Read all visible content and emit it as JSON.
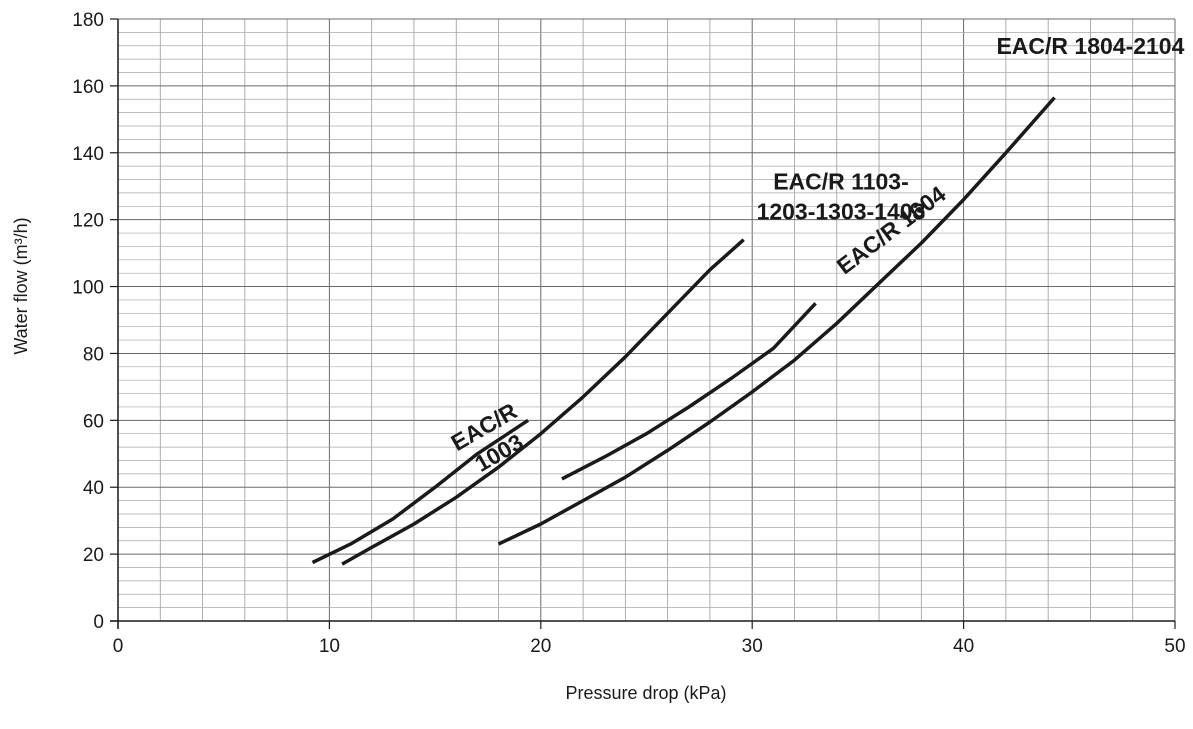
{
  "chart_data": {
    "type": "line",
    "xlabel": "Pressure drop (kPa)",
    "ylabel": "Water flow (m³/h)",
    "xlim": [
      0,
      50
    ],
    "ylim": [
      0,
      180
    ],
    "x_ticks": [
      "0",
      "10",
      "20",
      "30",
      "40",
      "50"
    ],
    "y_ticks": [
      "0",
      "20",
      "40",
      "60",
      "80",
      "100",
      "120",
      "140",
      "160",
      "180"
    ],
    "grid": {
      "x_minor_step": 2,
      "y_minor_step": 4,
      "x_major_step": 10,
      "y_major_step": 20
    },
    "series": [
      {
        "name": "EAC/R 1003",
        "points": [
          [
            9.2,
            17.5
          ],
          [
            11,
            23
          ],
          [
            13,
            30.5
          ],
          [
            15,
            40
          ],
          [
            17,
            50
          ],
          [
            19.4,
            60
          ]
        ]
      },
      {
        "name": "EAC/R 1103-1203-1303-1403",
        "points": [
          [
            10.6,
            17
          ],
          [
            12,
            22
          ],
          [
            14,
            29
          ],
          [
            16,
            37
          ],
          [
            18,
            46
          ],
          [
            20,
            56
          ],
          [
            22,
            67
          ],
          [
            24,
            79
          ],
          [
            26,
            92
          ],
          [
            28,
            105
          ],
          [
            29.6,
            114
          ]
        ]
      },
      {
        "name": "EAC/R 1604",
        "points": [
          [
            21,
            42.5
          ],
          [
            23,
            49
          ],
          [
            25,
            56
          ],
          [
            27,
            64
          ],
          [
            29,
            72.5
          ],
          [
            31,
            81.5
          ],
          [
            33,
            95
          ]
        ]
      },
      {
        "name": "EAC/R 1804-2104",
        "points": [
          [
            18,
            23
          ],
          [
            20,
            29
          ],
          [
            22,
            36
          ],
          [
            24,
            43
          ],
          [
            26,
            51
          ],
          [
            28,
            59.5
          ],
          [
            30,
            68.5
          ],
          [
            32,
            78
          ],
          [
            34,
            89
          ],
          [
            36,
            101
          ],
          [
            38,
            113
          ],
          [
            40,
            126
          ],
          [
            42,
            140
          ],
          [
            44.3,
            156.5
          ]
        ]
      }
    ],
    "series_labels": [
      {
        "lines": [
          "EAC/R",
          "1003"
        ],
        "anchor": [
          17.5,
          56
        ],
        "rotate": -30
      },
      {
        "lines": [
          "EAC/R 1103-",
          "1203-1303-1403"
        ],
        "anchor": [
          34.2,
          129
        ],
        "rotate": 0
      },
      {
        "lines": [
          "EAC/R 1604"
        ],
        "anchor": [
          36.8,
          115
        ],
        "rotate": -37
      },
      {
        "lines": [
          "EAC/R 1804-2104"
        ],
        "anchor": [
          46,
          169.5
        ],
        "rotate": 0
      }
    ]
  }
}
